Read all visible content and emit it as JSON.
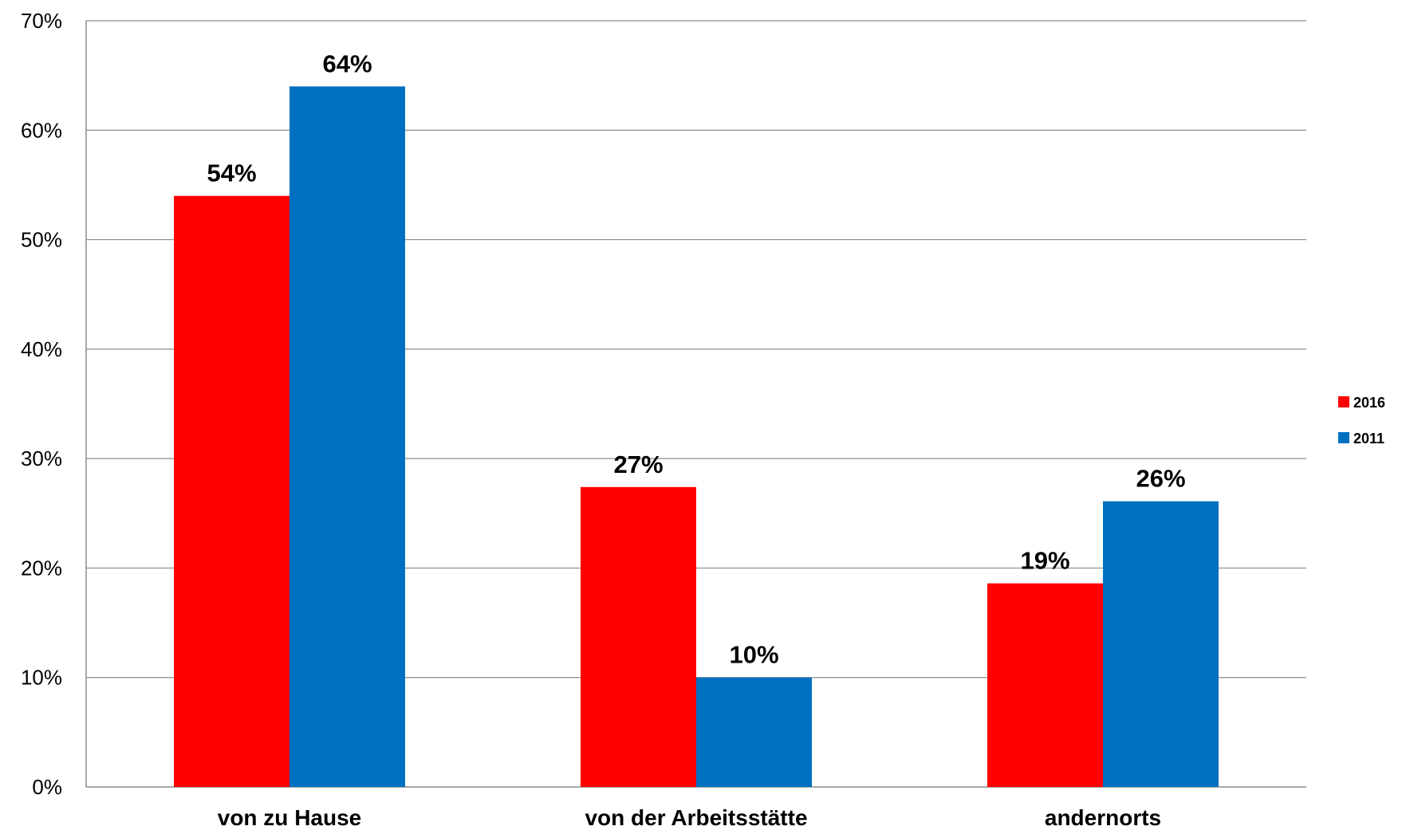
{
  "chart_data": {
    "type": "bar",
    "title": "",
    "xlabel": "",
    "ylabel": "",
    "categories": [
      "von zu Hause",
      "von der Arbeitsstätte",
      "andernorts"
    ],
    "series": [
      {
        "name": "2016",
        "color": "#FF0000",
        "values": [
          54,
          27.4,
          18.6
        ],
        "labels": [
          "54%",
          "27%",
          "19%"
        ]
      },
      {
        "name": "2011",
        "color": "#0070C0",
        "values": [
          64,
          10,
          26.1
        ],
        "labels": [
          "64%",
          "10%",
          "26%"
        ]
      }
    ],
    "ylim": [
      0,
      70
    ],
    "yticks": [
      0,
      10,
      20,
      30,
      40,
      50,
      60,
      70
    ],
    "ytick_labels": [
      "0%",
      "10%",
      "20%",
      "30%",
      "40%",
      "50%",
      "60%",
      "70%"
    ],
    "grid": true,
    "legend_position": "right"
  }
}
